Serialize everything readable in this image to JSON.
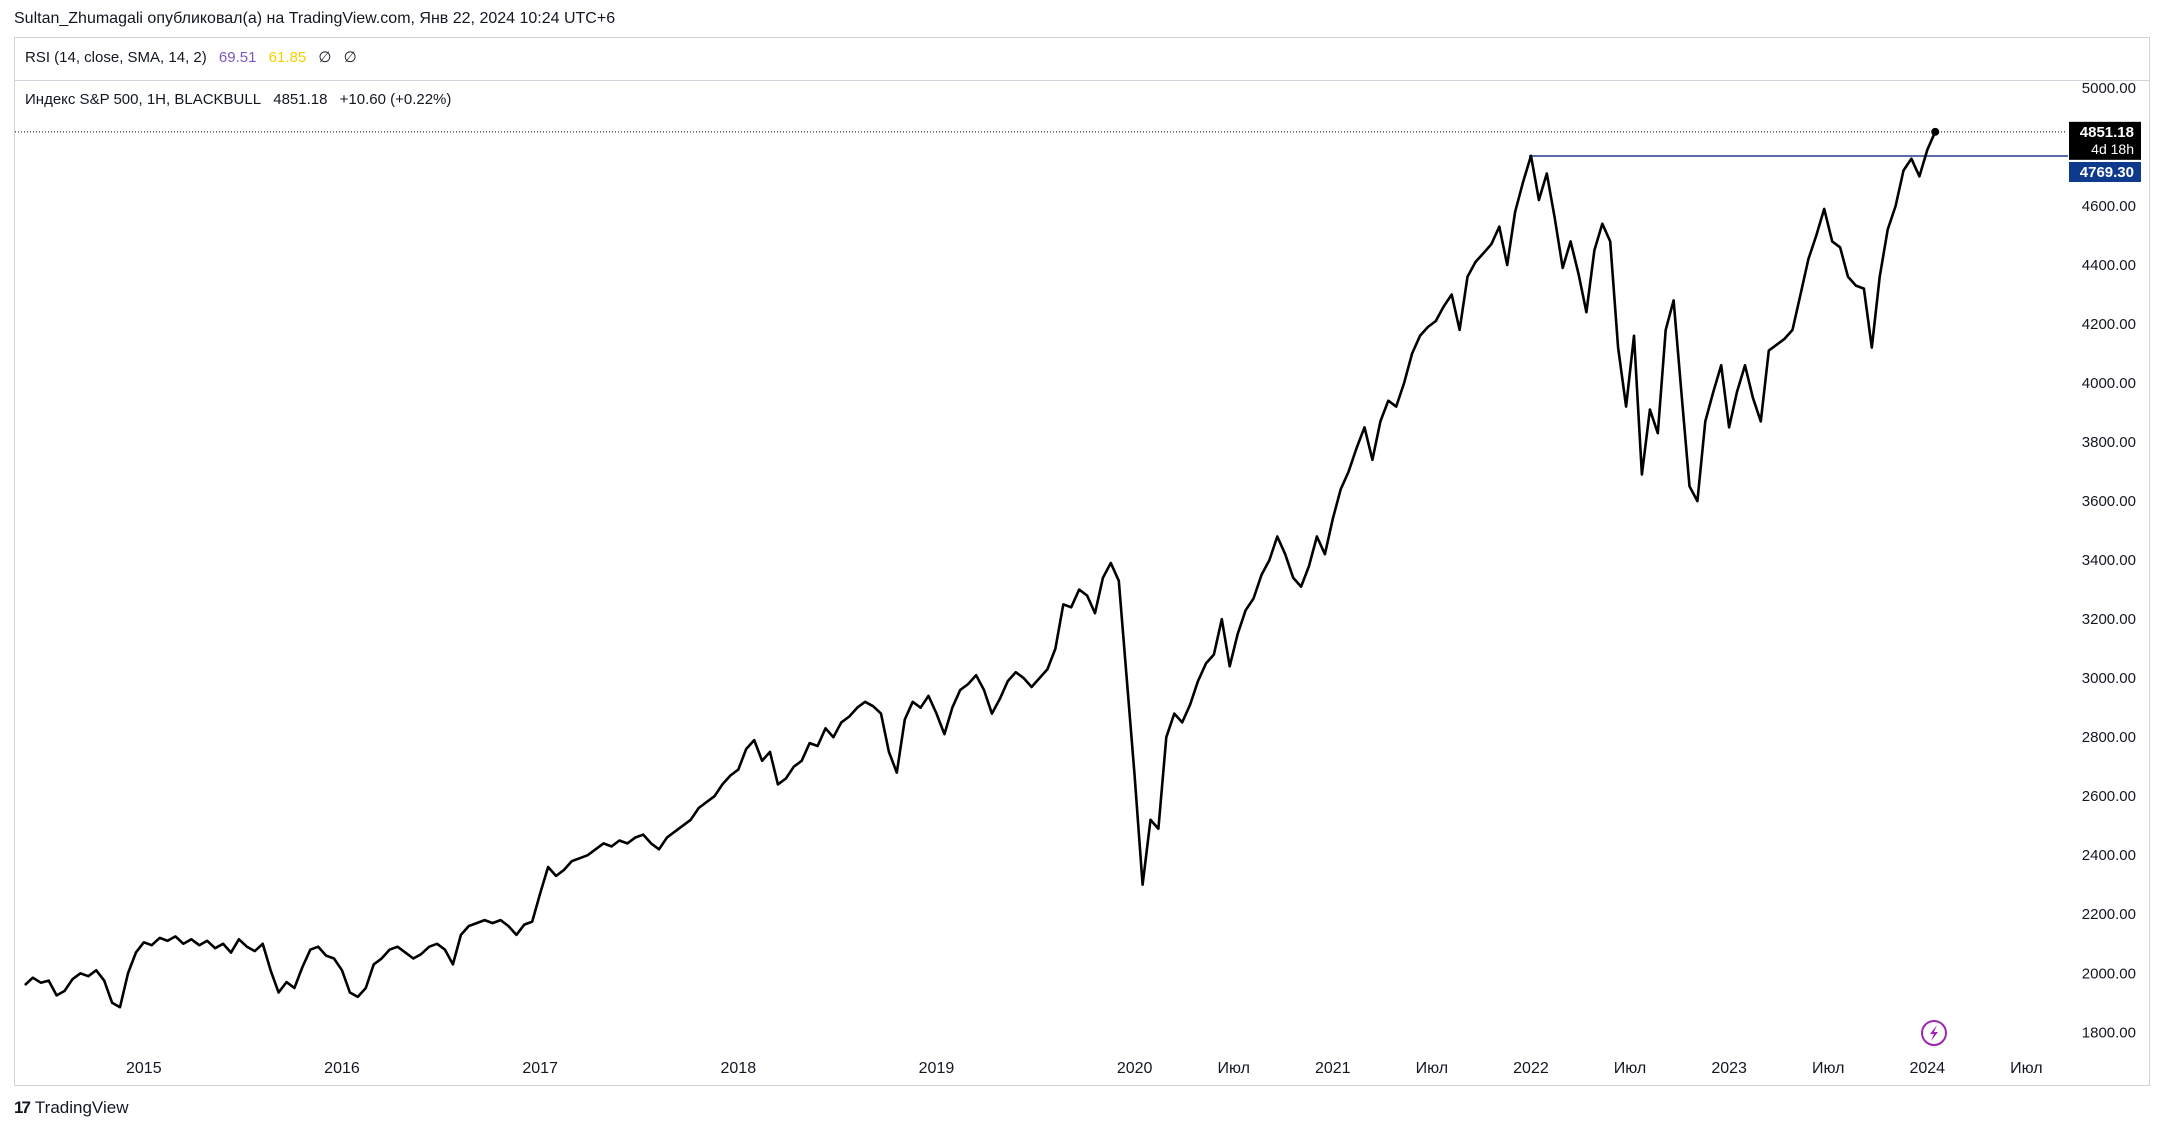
{
  "header": {
    "publish_line": "Sultan_Zhumagali опубликовал(а) на TradingView.com, Янв 22, 2024 10:24 UTC+6"
  },
  "rsi": {
    "label": "RSI (14, close, SMA, 14, 2)",
    "value": "69.51",
    "sma": "61.85",
    "extra1": "∅",
    "extra2": "∅",
    "value_color": "#7e57c2",
    "sma_color": "#f5d000"
  },
  "main_legend": {
    "symbol": "Индекс S&P 500, 1H, BLACKBULL",
    "last": "4851.18",
    "change": "+10.60 (+0.22%)"
  },
  "price_labels": {
    "last_price": "4851.18",
    "countdown": "4d 18h",
    "level_price": "4769.30"
  },
  "footer": {
    "logo": "17",
    "brand": "TradingView"
  },
  "colors": {
    "line": "#000000",
    "level_line": "#1e3a8a",
    "last_label_bg": "#000000",
    "level_label_bg": "#0d3a8c",
    "lightning": "#9c27b0"
  },
  "icons": [
    "tradingview-logo-icon",
    "lightning-icon"
  ],
  "chart_data": {
    "type": "line",
    "title": "",
    "xlabel": "",
    "ylabel": "",
    "ylim": [
      1740,
      5020
    ],
    "y_ticks": [
      5000,
      4800,
      4600,
      4400,
      4200,
      4000,
      3800,
      3600,
      3400,
      3200,
      3000,
      2800,
      2600,
      2400,
      2200,
      2000,
      1800
    ],
    "y_tick_labels": [
      "5000.00",
      "4800.00",
      "4600.00",
      "4400.00",
      "4200.00",
      "4000.00",
      "3800.00",
      "3600.00",
      "3400.00",
      "3200.00",
      "3000.00",
      "2800.00",
      "2600.00",
      "2400.00",
      "2200.00",
      "2000.00",
      "1800.00"
    ],
    "x_ticks": [
      {
        "label": "2015",
        "t": 2015.0
      },
      {
        "label": "2016",
        "t": 2016.0
      },
      {
        "label": "2017",
        "t": 2017.0
      },
      {
        "label": "2018",
        "t": 2018.0
      },
      {
        "label": "2019",
        "t": 2019.0
      },
      {
        "label": "2020",
        "t": 2020.0
      },
      {
        "label": "Июл",
        "t": 2020.5
      },
      {
        "label": "2021",
        "t": 2021.0
      },
      {
        "label": "Июл",
        "t": 2021.5
      },
      {
        "label": "2022",
        "t": 2022.0
      },
      {
        "label": "Июл",
        "t": 2022.5
      },
      {
        "label": "2023",
        "t": 2023.0
      },
      {
        "label": "Июл",
        "t": 2023.5
      },
      {
        "label": "2024",
        "t": 2024.0
      },
      {
        "label": "Июл",
        "t": 2024.5
      }
    ],
    "xlim": [
      2014.35,
      2024.7
    ],
    "horizontal_level": {
      "value": 4769.3,
      "from_t": 2021.99
    },
    "series": [
      {
        "points": [
          [
            2014.4,
            1960
          ],
          [
            2014.44,
            1985
          ],
          [
            2014.48,
            1968
          ],
          [
            2014.52,
            1975
          ],
          [
            2014.56,
            1925
          ],
          [
            2014.6,
            1940
          ],
          [
            2014.64,
            1980
          ],
          [
            2014.68,
            2000
          ],
          [
            2014.72,
            1990
          ],
          [
            2014.76,
            2010
          ],
          [
            2014.8,
            1975
          ],
          [
            2014.84,
            1900
          ],
          [
            2014.88,
            1885
          ],
          [
            2014.92,
            2000
          ],
          [
            2014.96,
            2070
          ],
          [
            2015.0,
            2105
          ],
          [
            2015.04,
            2095
          ],
          [
            2015.08,
            2120
          ],
          [
            2015.12,
            2110
          ],
          [
            2015.16,
            2125
          ],
          [
            2015.2,
            2100
          ],
          [
            2015.24,
            2115
          ],
          [
            2015.28,
            2095
          ],
          [
            2015.32,
            2110
          ],
          [
            2015.36,
            2085
          ],
          [
            2015.4,
            2100
          ],
          [
            2015.44,
            2070
          ],
          [
            2015.48,
            2115
          ],
          [
            2015.52,
            2090
          ],
          [
            2015.56,
            2075
          ],
          [
            2015.6,
            2100
          ],
          [
            2015.64,
            2010
          ],
          [
            2015.68,
            1935
          ],
          [
            2015.72,
            1970
          ],
          [
            2015.76,
            1950
          ],
          [
            2015.8,
            2020
          ],
          [
            2015.84,
            2080
          ],
          [
            2015.88,
            2090
          ],
          [
            2015.92,
            2060
          ],
          [
            2015.96,
            2050
          ],
          [
            2016.0,
            2010
          ],
          [
            2016.04,
            1935
          ],
          [
            2016.08,
            1920
          ],
          [
            2016.12,
            1950
          ],
          [
            2016.16,
            2030
          ],
          [
            2016.2,
            2050
          ],
          [
            2016.24,
            2080
          ],
          [
            2016.28,
            2090
          ],
          [
            2016.32,
            2070
          ],
          [
            2016.36,
            2050
          ],
          [
            2016.4,
            2065
          ],
          [
            2016.44,
            2090
          ],
          [
            2016.48,
            2100
          ],
          [
            2016.52,
            2080
          ],
          [
            2016.56,
            2030
          ],
          [
            2016.6,
            2130
          ],
          [
            2016.64,
            2160
          ],
          [
            2016.68,
            2170
          ],
          [
            2016.72,
            2180
          ],
          [
            2016.76,
            2170
          ],
          [
            2016.8,
            2180
          ],
          [
            2016.84,
            2160
          ],
          [
            2016.88,
            2130
          ],
          [
            2016.92,
            2165
          ],
          [
            2016.96,
            2175
          ],
          [
            2017.0,
            2270
          ],
          [
            2017.04,
            2360
          ],
          [
            2017.08,
            2330
          ],
          [
            2017.12,
            2350
          ],
          [
            2017.16,
            2380
          ],
          [
            2017.2,
            2390
          ],
          [
            2017.24,
            2400
          ],
          [
            2017.28,
            2420
          ],
          [
            2017.32,
            2440
          ],
          [
            2017.36,
            2430
          ],
          [
            2017.4,
            2450
          ],
          [
            2017.44,
            2440
          ],
          [
            2017.48,
            2460
          ],
          [
            2017.52,
            2470
          ],
          [
            2017.56,
            2440
          ],
          [
            2017.6,
            2420
          ],
          [
            2017.64,
            2460
          ],
          [
            2017.68,
            2480
          ],
          [
            2017.72,
            2500
          ],
          [
            2017.76,
            2520
          ],
          [
            2017.8,
            2560
          ],
          [
            2017.84,
            2580
          ],
          [
            2017.88,
            2600
          ],
          [
            2017.92,
            2640
          ],
          [
            2017.96,
            2670
          ],
          [
            2018.0,
            2690
          ],
          [
            2018.04,
            2760
          ],
          [
            2018.08,
            2790
          ],
          [
            2018.12,
            2720
          ],
          [
            2018.16,
            2750
          ],
          [
            2018.2,
            2640
          ],
          [
            2018.24,
            2660
          ],
          [
            2018.28,
            2700
          ],
          [
            2018.32,
            2720
          ],
          [
            2018.36,
            2780
          ],
          [
            2018.4,
            2770
          ],
          [
            2018.44,
            2830
          ],
          [
            2018.48,
            2800
          ],
          [
            2018.52,
            2850
          ],
          [
            2018.56,
            2870
          ],
          [
            2018.6,
            2900
          ],
          [
            2018.64,
            2920
          ],
          [
            2018.68,
            2905
          ],
          [
            2018.72,
            2880
          ],
          [
            2018.76,
            2750
          ],
          [
            2018.8,
            2680
          ],
          [
            2018.84,
            2860
          ],
          [
            2018.88,
            2920
          ],
          [
            2018.92,
            2900
          ],
          [
            2018.96,
            2940
          ],
          [
            2019.0,
            2880
          ],
          [
            2019.04,
            2810
          ],
          [
            2019.08,
            2900
          ],
          [
            2019.12,
            2960
          ],
          [
            2019.16,
            2980
          ],
          [
            2019.2,
            3010
          ],
          [
            2019.24,
            2960
          ],
          [
            2019.28,
            2880
          ],
          [
            2019.32,
            2930
          ],
          [
            2019.36,
            2990
          ],
          [
            2019.4,
            3020
          ],
          [
            2019.44,
            3000
          ],
          [
            2019.48,
            2970
          ],
          [
            2019.52,
            3000
          ],
          [
            2019.56,
            3030
          ],
          [
            2019.6,
            3100
          ],
          [
            2019.64,
            3250
          ],
          [
            2019.68,
            3240
          ],
          [
            2019.72,
            3300
          ],
          [
            2019.76,
            3280
          ],
          [
            2019.8,
            3220
          ],
          [
            2019.84,
            3340
          ],
          [
            2019.88,
            3390
          ],
          [
            2019.92,
            3330
          ],
          [
            2019.96,
            3000
          ],
          [
            2020.0,
            2670
          ],
          [
            2020.04,
            2300
          ],
          [
            2020.08,
            2520
          ],
          [
            2020.12,
            2490
          ],
          [
            2020.16,
            2800
          ],
          [
            2020.2,
            2880
          ],
          [
            2020.24,
            2850
          ],
          [
            2020.28,
            2910
          ],
          [
            2020.32,
            2990
          ],
          [
            2020.36,
            3050
          ],
          [
            2020.4,
            3080
          ],
          [
            2020.44,
            3200
          ],
          [
            2020.48,
            3040
          ],
          [
            2020.52,
            3150
          ],
          [
            2020.56,
            3230
          ],
          [
            2020.6,
            3270
          ],
          [
            2020.64,
            3350
          ],
          [
            2020.68,
            3400
          ],
          [
            2020.72,
            3480
          ],
          [
            2020.76,
            3420
          ],
          [
            2020.8,
            3340
          ],
          [
            2020.84,
            3310
          ],
          [
            2020.88,
            3380
          ],
          [
            2020.92,
            3480
          ],
          [
            2020.96,
            3420
          ],
          [
            2021.0,
            3540
          ],
          [
            2021.04,
            3640
          ],
          [
            2021.08,
            3700
          ],
          [
            2021.12,
            3780
          ],
          [
            2021.16,
            3850
          ],
          [
            2021.2,
            3740
          ],
          [
            2021.24,
            3870
          ],
          [
            2021.28,
            3940
          ],
          [
            2021.32,
            3920
          ],
          [
            2021.36,
            4000
          ],
          [
            2021.4,
            4100
          ],
          [
            2021.44,
            4160
          ],
          [
            2021.48,
            4190
          ],
          [
            2021.52,
            4210
          ],
          [
            2021.56,
            4260
          ],
          [
            2021.6,
            4300
          ],
          [
            2021.64,
            4180
          ],
          [
            2021.68,
            4360
          ],
          [
            2021.72,
            4410
          ],
          [
            2021.76,
            4440
          ],
          [
            2021.8,
            4470
          ],
          [
            2021.84,
            4530
          ],
          [
            2021.88,
            4400
          ],
          [
            2021.92,
            4580
          ],
          [
            2021.96,
            4680
          ],
          [
            2022.0,
            4770
          ],
          [
            2022.04,
            4620
          ],
          [
            2022.08,
            4710
          ],
          [
            2022.12,
            4560
          ],
          [
            2022.16,
            4390
          ],
          [
            2022.2,
            4480
          ],
          [
            2022.24,
            4370
          ],
          [
            2022.28,
            4240
          ],
          [
            2022.32,
            4450
          ],
          [
            2022.36,
            4540
          ],
          [
            2022.4,
            4480
          ],
          [
            2022.44,
            4120
          ],
          [
            2022.48,
            3920
          ],
          [
            2022.52,
            4160
          ],
          [
            2022.56,
            3690
          ],
          [
            2022.6,
            3910
          ],
          [
            2022.64,
            3830
          ],
          [
            2022.68,
            4180
          ],
          [
            2022.72,
            4280
          ],
          [
            2022.76,
            3960
          ],
          [
            2022.8,
            3650
          ],
          [
            2022.84,
            3600
          ],
          [
            2022.88,
            3870
          ],
          [
            2022.92,
            3970
          ],
          [
            2022.96,
            4060
          ],
          [
            2023.0,
            3850
          ],
          [
            2023.04,
            3970
          ],
          [
            2023.08,
            4060
          ],
          [
            2023.12,
            3950
          ],
          [
            2023.16,
            3870
          ],
          [
            2023.2,
            4110
          ],
          [
            2023.24,
            4130
          ],
          [
            2023.28,
            4150
          ],
          [
            2023.32,
            4180
          ],
          [
            2023.36,
            4300
          ],
          [
            2023.4,
            4420
          ],
          [
            2023.44,
            4500
          ],
          [
            2023.48,
            4590
          ],
          [
            2023.52,
            4480
          ],
          [
            2023.56,
            4460
          ],
          [
            2023.6,
            4360
          ],
          [
            2023.64,
            4330
          ],
          [
            2023.68,
            4320
          ],
          [
            2023.72,
            4120
          ],
          [
            2023.76,
            4360
          ],
          [
            2023.8,
            4520
          ],
          [
            2023.84,
            4600
          ],
          [
            2023.88,
            4720
          ],
          [
            2023.92,
            4760
          ],
          [
            2023.96,
            4700
          ],
          [
            2024.0,
            4790
          ],
          [
            2024.04,
            4851.18
          ]
        ]
      }
    ]
  }
}
